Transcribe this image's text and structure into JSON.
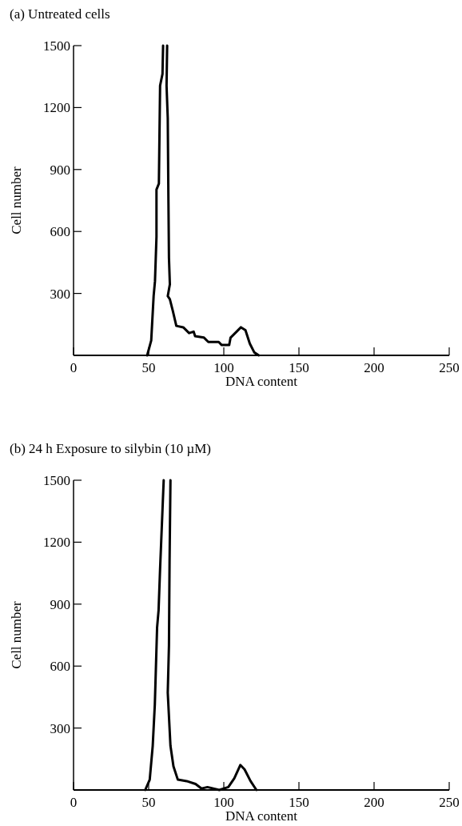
{
  "chart_data": [
    {
      "type": "line",
      "title": "(a) Untreated cells",
      "xlabel": "DNA content",
      "ylabel": "Cell number",
      "xlim": [
        0,
        250
      ],
      "ylim": [
        0,
        1500
      ],
      "xticks": [
        0,
        50,
        100,
        150,
        200,
        250
      ],
      "yticks": [
        300,
        600,
        900,
        1200,
        1500
      ],
      "grid": false,
      "marker": "none",
      "line_style": "solid",
      "series": [
        {
          "color": "#000000",
          "x": [
            49,
            51.7,
            53.3,
            54.2,
            55.2,
            55.2,
            56.8,
            57.2,
            57.6,
            59.2,
            59.6,
            61,
            62.3,
            61.9,
            62.7,
            63.1,
            63.5,
            64.1,
            62.7,
            64.1,
            66.1,
            68.4,
            73,
            76.9,
            79.9,
            80.9,
            86.8,
            89.7,
            96.6,
            98.6,
            103.6,
            104.5,
            108.5,
            111.4,
            114.4,
            117.3,
            120.3,
            123.3
          ],
          "values": [
            0,
            72,
            287,
            359,
            574,
            803,
            832,
            1076,
            1306,
            1363,
            1500,
            null,
            1500,
            1306,
            1148,
            789,
            473,
            344,
            287,
            272,
            215,
            143,
            136,
            108,
            115,
            93,
            86,
            65,
            65,
            50,
            50,
            86,
            115,
            136,
            122,
            57,
            14,
            0
          ]
        }
      ]
    },
    {
      "type": "line",
      "title": "(b) 24 h Exposure to silybin (10 µM)",
      "xlabel": "DNA content",
      "ylabel": "Cell number",
      "xlim": [
        0,
        250
      ],
      "ylim": [
        0,
        1500
      ],
      "xticks": [
        0,
        50,
        100,
        150,
        200,
        250
      ],
      "yticks": [
        300,
        600,
        900,
        1200,
        1500
      ],
      "grid": false,
      "marker": "none",
      "line_style": "solid",
      "series": [
        {
          "color": "#000000",
          "x": [
            47.7,
            50.7,
            52.7,
            54.1,
            55.6,
            56.6,
            57.6,
            59.2,
            60,
            62,
            64.5,
            63.9,
            63.5,
            62.7,
            64.5,
            66.5,
            69.4,
            75.3,
            81.2,
            85.2,
            89.1,
            97,
            103,
            107,
            111,
            113.8,
            117.8,
            121.7
          ],
          "values": [
            0,
            50,
            214,
            414,
            786,
            871,
            1071,
            1357,
            1500,
            null,
            1500,
            1100,
            700,
            471,
            214,
            114,
            50,
            43,
            29,
            7,
            14,
            0,
            14,
            57,
            121,
            100,
            43,
            0
          ]
        }
      ]
    }
  ]
}
